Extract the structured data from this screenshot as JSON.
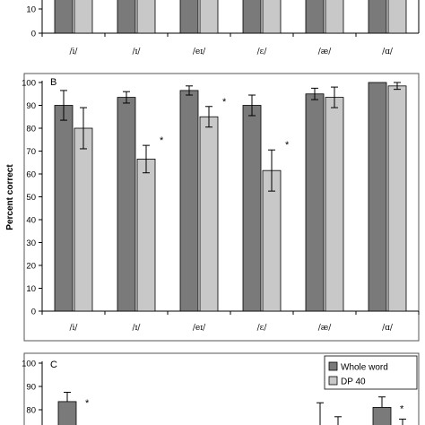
{
  "chart_data": [
    {
      "panel": "",
      "type": "bar",
      "categories": [
        "/i/",
        "/ɪ/",
        "/eɪ/",
        "/ɛ/",
        "/æ/",
        "/ɑ/"
      ],
      "ylim": [
        0,
        100
      ],
      "yticks": [
        0,
        10
      ],
      "series": [
        {
          "name": "Whole word",
          "values": [
            null,
            null,
            null,
            null,
            null,
            null
          ]
        },
        {
          "name": "DP 40",
          "values": [
            null,
            null,
            null,
            null,
            null,
            null
          ]
        }
      ]
    },
    {
      "panel": "B",
      "type": "bar",
      "categories": [
        "/i/",
        "/ɪ/",
        "/eɪ/",
        "/ɛ/",
        "/æ/",
        "/ɑ/"
      ],
      "ylabel": "Percent correct",
      "ylim": [
        0,
        100
      ],
      "yticks": [
        0,
        10,
        20,
        30,
        40,
        50,
        60,
        70,
        80,
        90,
        100
      ],
      "grid": false,
      "series": [
        {
          "name": "Whole word",
          "values": [
            90,
            93.5,
            96.5,
            90,
            95,
            100
          ],
          "errors": [
            6.5,
            2.5,
            2,
            4.5,
            2.5,
            0
          ]
        },
        {
          "name": "DP 40",
          "values": [
            80,
            66.5,
            85,
            61.5,
            93.5,
            98.5
          ],
          "errors": [
            9,
            6,
            4.5,
            9,
            4.5,
            1.5
          ]
        }
      ],
      "significance": [
        "",
        "*",
        "*",
        "*",
        "",
        ""
      ]
    },
    {
      "panel": "C",
      "type": "bar",
      "ylim": [
        0,
        100
      ],
      "yticks": [
        70,
        80,
        90,
        100
      ],
      "legend": {
        "position": "top-right",
        "entries": [
          "Whole word",
          "DP 40"
        ]
      },
      "annotations": [
        "*",
        "*"
      ]
    }
  ],
  "colors": {
    "whole_word": "#7a7a7a",
    "dp40": "#c8c8c8"
  }
}
